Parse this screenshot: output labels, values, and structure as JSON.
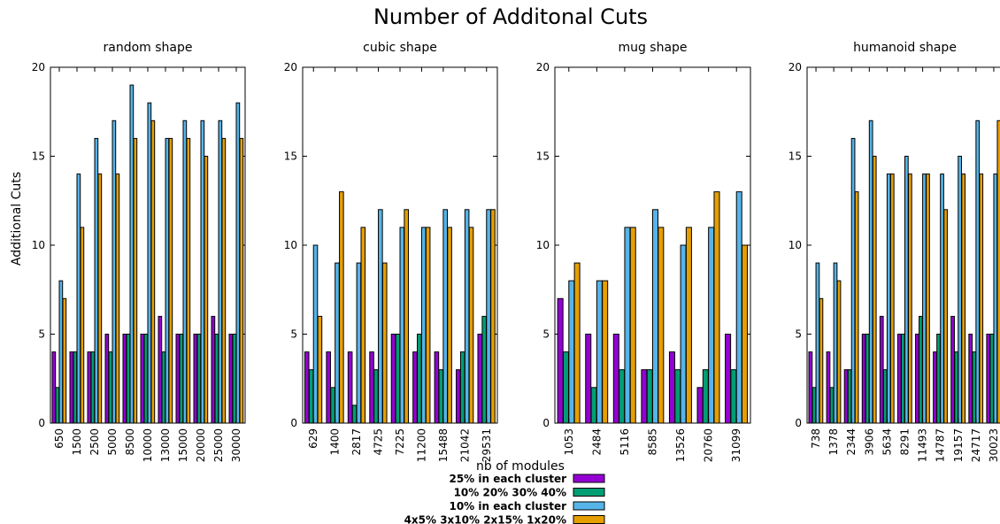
{
  "figure": {
    "title": "Number of Additonal Cuts",
    "ylabel": "Additional Cuts"
  },
  "legend": {
    "title": "nb of modules",
    "entries": [
      {
        "label": "25% in each cluster",
        "color": "#9400d3"
      },
      {
        "label": "10% 20% 30% 40%",
        "color": "#009e73"
      },
      {
        "label": "10% in each cluster",
        "color": "#56b4e9"
      },
      {
        "label": "4x5% 3x10% 2x15% 1x20%",
        "color": "#e69f00"
      }
    ]
  },
  "chart_data": [
    {
      "type": "bar",
      "title": "random shape",
      "ylim": [
        0,
        20
      ],
      "yticks": [
        0,
        5,
        10,
        15,
        20
      ],
      "categories": [
        "650",
        "1500",
        "2500",
        "5000",
        "8500",
        "10000",
        "13000",
        "15000",
        "20000",
        "25000",
        "30000"
      ],
      "series": [
        {
          "name": "25% in each cluster",
          "values": [
            4,
            4,
            4,
            5,
            5,
            5,
            6,
            5,
            5,
            6,
            5
          ]
        },
        {
          "name": "10% 20% 30% 40%",
          "values": [
            2,
            4,
            4,
            4,
            5,
            5,
            4,
            5,
            5,
            5,
            5
          ]
        },
        {
          "name": "10% in each cluster",
          "values": [
            8,
            14,
            16,
            17,
            19,
            18,
            16,
            17,
            17,
            17,
            18
          ]
        },
        {
          "name": "4x5% 3x10% 2x15% 1x20%",
          "values": [
            7,
            11,
            14,
            14,
            16,
            17,
            16,
            16,
            15,
            16,
            16
          ]
        }
      ]
    },
    {
      "type": "bar",
      "title": "cubic shape",
      "ylim": [
        0,
        20
      ],
      "yticks": [
        0,
        5,
        10,
        15,
        20
      ],
      "categories": [
        "629",
        "1400",
        "2817",
        "4725",
        "7225",
        "11200",
        "15488",
        "21042",
        "29531"
      ],
      "series": [
        {
          "name": "25% in each cluster",
          "values": [
            4,
            4,
            4,
            4,
            5,
            4,
            4,
            3,
            5
          ]
        },
        {
          "name": "10% 20% 30% 40%",
          "values": [
            3,
            2,
            1,
            3,
            5,
            5,
            3,
            4,
            6
          ]
        },
        {
          "name": "10% in each cluster",
          "values": [
            10,
            9,
            9,
            12,
            11,
            11,
            12,
            12,
            12
          ]
        },
        {
          "name": "4x5% 3x10% 2x15% 1x20%",
          "values": [
            6,
            13,
            11,
            9,
            12,
            11,
            11,
            11,
            12
          ]
        }
      ]
    },
    {
      "type": "bar",
      "title": "mug shape",
      "ylim": [
        0,
        20
      ],
      "yticks": [
        0,
        5,
        10,
        15,
        20
      ],
      "categories": [
        "1053",
        "2484",
        "5116",
        "8585",
        "13526",
        "20760",
        "31099"
      ],
      "series": [
        {
          "name": "25% in each cluster",
          "values": [
            7,
            5,
            5,
            3,
            4,
            2,
            5
          ]
        },
        {
          "name": "10% 20% 30% 40%",
          "values": [
            4,
            2,
            3,
            3,
            3,
            3,
            3
          ]
        },
        {
          "name": "10% in each cluster",
          "values": [
            8,
            8,
            11,
            12,
            10,
            11,
            13
          ]
        },
        {
          "name": "4x5% 3x10% 2x15% 1x20%",
          "values": [
            9,
            8,
            11,
            11,
            11,
            13,
            10
          ]
        }
      ]
    },
    {
      "type": "bar",
      "title": "humanoid shape",
      "ylim": [
        0,
        20
      ],
      "yticks": [
        0,
        5,
        10,
        15,
        20
      ],
      "categories": [
        "738",
        "1378",
        "2344",
        "3906",
        "5634",
        "8291",
        "11493",
        "14787",
        "19157",
        "24717",
        "30023"
      ],
      "series": [
        {
          "name": "25% in each cluster",
          "values": [
            4,
            4,
            3,
            5,
            6,
            5,
            5,
            4,
            6,
            5,
            5
          ]
        },
        {
          "name": "10% 20% 30% 40%",
          "values": [
            2,
            2,
            3,
            5,
            3,
            5,
            6,
            5,
            4,
            4,
            5
          ]
        },
        {
          "name": "10% in each cluster",
          "values": [
            9,
            9,
            16,
            17,
            14,
            15,
            14,
            14,
            15,
            17,
            14
          ]
        },
        {
          "name": "4x5% 3x10% 2x15% 1x20%",
          "values": [
            7,
            8,
            13,
            15,
            14,
            14,
            14,
            12,
            14,
            14,
            17
          ]
        }
      ]
    }
  ]
}
